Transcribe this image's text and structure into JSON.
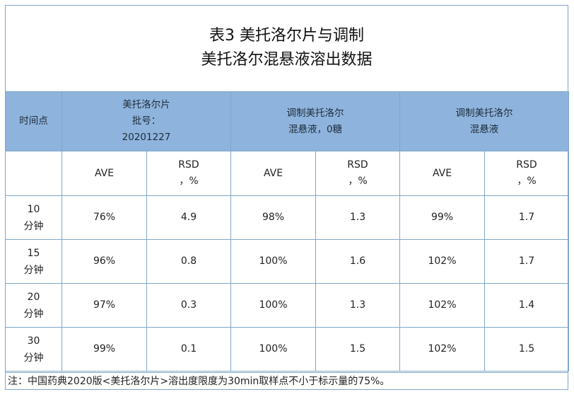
{
  "title": {
    "line1": "表3 美托洛尔片与调制",
    "line2": "美托洛尔混悬液溶出数据"
  },
  "header": {
    "time_col": "时间点",
    "group1": [
      "美托洛尔片",
      "批号：",
      "20201227"
    ],
    "group2": [
      "调制美托洛尔",
      "混悬液，0糖"
    ],
    "group3": [
      "调制美托洛尔",
      "混悬液"
    ]
  },
  "subheader": {
    "ave": "AVE",
    "rsd_line1": "RSD",
    "rsd_line2": "，%"
  },
  "rows": [
    {
      "time": [
        "10",
        "分钟"
      ],
      "values": [
        "76%",
        "4.9",
        "98%",
        "1.3",
        "99%",
        "1.7"
      ]
    },
    {
      "time": [
        "15",
        "分钟"
      ],
      "values": [
        "96%",
        "0.8",
        "100%",
        "1.6",
        "102%",
        "1.7"
      ]
    },
    {
      "time": [
        "20",
        "分钟"
      ],
      "values": [
        "97%",
        "0.3",
        "100%",
        "1.3",
        "102%",
        "1.4"
      ]
    },
    {
      "time": [
        "30",
        "分钟"
      ],
      "values": [
        "99%",
        "0.1",
        "100%",
        "1.5",
        "102%",
        "1.5"
      ]
    }
  ],
  "note": "注：中国药典2020版<美托洛尔片>溶出度限度为30min取样点不小于标示量的75%。",
  "colors": {
    "header_bg": "#8eb4dd",
    "border": "#7fa6c9"
  }
}
